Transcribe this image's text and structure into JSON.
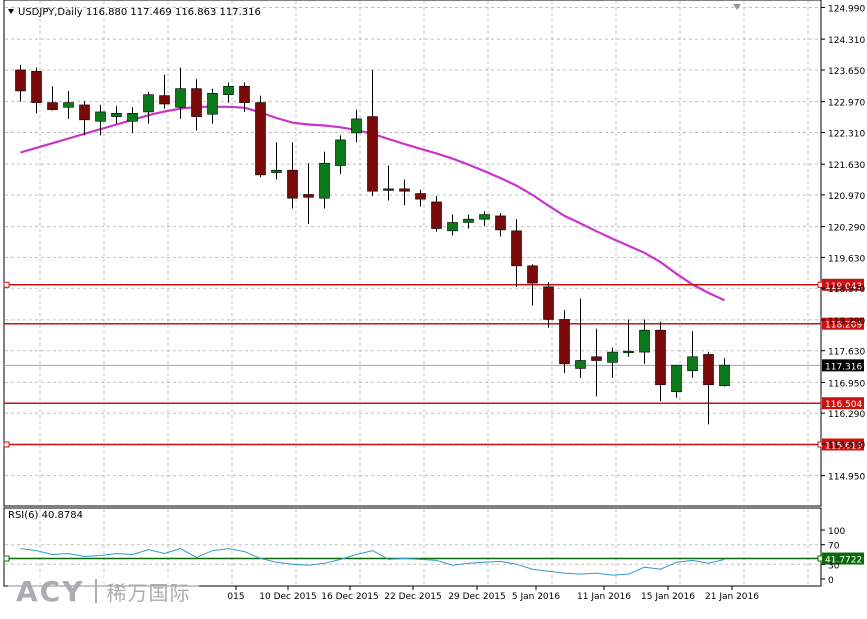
{
  "header": {
    "symbol_line": "USDJPY,Daily  116.880 117.469 116.863 117.316"
  },
  "rsi_header": "RSI(6) 40.8784",
  "watermark": {
    "brand": "ACY",
    "chinese": "稀万国际"
  },
  "colors": {
    "bull_fill": "#0a7a1a",
    "bear_fill": "#7a0a0a",
    "ma": "#cc33cc",
    "hline_red": "#cc1111",
    "rsi_line": "#3399cc",
    "rsi_level": "#0a6a0a",
    "grid": "#bfbfbf",
    "axis": "#000000"
  },
  "chart_data": [
    {
      "type": "candlestick",
      "title": "USDJPY,Daily",
      "ylim": [
        114.3,
        125.15
      ],
      "y_ticks": [
        "124.990",
        "124.310",
        "123.650",
        "122.970",
        "122.310",
        "121.630",
        "120.970",
        "120.290",
        "119.630",
        "118.970",
        "118.290",
        "117.630",
        "116.950",
        "116.290",
        "115.630",
        "114.950"
      ],
      "x_ticks": [
        "015",
        "10 Dec 2015",
        "16 Dec 2015",
        "22 Dec 2015",
        "29 Dec 2015",
        "5 Jan 2016",
        "11 Jan 2016",
        "15 Jan 2016",
        "21 Jan 2016"
      ],
      "candles": [
        {
          "o": 123.65,
          "h": 123.76,
          "l": 122.97,
          "c": 123.2
        },
        {
          "o": 123.62,
          "h": 123.7,
          "l": 122.72,
          "c": 122.95
        },
        {
          "o": 122.95,
          "h": 123.3,
          "l": 122.78,
          "c": 122.8
        },
        {
          "o": 122.85,
          "h": 123.2,
          "l": 122.6,
          "c": 122.95
        },
        {
          "o": 122.9,
          "h": 122.98,
          "l": 122.25,
          "c": 122.58
        },
        {
          "o": 122.55,
          "h": 122.9,
          "l": 122.25,
          "c": 122.75
        },
        {
          "o": 122.65,
          "h": 122.88,
          "l": 122.5,
          "c": 122.72
        },
        {
          "o": 122.55,
          "h": 122.85,
          "l": 122.3,
          "c": 122.72
        },
        {
          "o": 122.75,
          "h": 123.18,
          "l": 122.5,
          "c": 123.12
        },
        {
          "o": 123.1,
          "h": 123.55,
          "l": 122.82,
          "c": 122.92
        },
        {
          "o": 122.85,
          "h": 123.7,
          "l": 122.6,
          "c": 123.25
        },
        {
          "o": 123.25,
          "h": 123.45,
          "l": 122.35,
          "c": 122.65
        },
        {
          "o": 122.7,
          "h": 123.25,
          "l": 122.5,
          "c": 123.15
        },
        {
          "o": 123.12,
          "h": 123.38,
          "l": 122.95,
          "c": 123.3
        },
        {
          "o": 123.3,
          "h": 123.38,
          "l": 122.75,
          "c": 122.95
        },
        {
          "o": 122.95,
          "h": 123.1,
          "l": 121.35,
          "c": 121.4
        },
        {
          "o": 121.45,
          "h": 122.1,
          "l": 121.3,
          "c": 121.5
        },
        {
          "o": 121.5,
          "h": 122.1,
          "l": 120.68,
          "c": 120.9
        },
        {
          "o": 120.98,
          "h": 121.65,
          "l": 120.35,
          "c": 120.92
        },
        {
          "o": 120.9,
          "h": 121.9,
          "l": 120.68,
          "c": 121.65
        },
        {
          "o": 121.6,
          "h": 122.25,
          "l": 121.42,
          "c": 122.15
        },
        {
          "o": 122.3,
          "h": 122.8,
          "l": 122.1,
          "c": 122.6
        },
        {
          "o": 122.65,
          "h": 123.65,
          "l": 120.95,
          "c": 121.05
        },
        {
          "o": 121.1,
          "h": 121.6,
          "l": 120.85,
          "c": 121.07
        },
        {
          "o": 121.1,
          "h": 121.3,
          "l": 120.75,
          "c": 121.05
        },
        {
          "o": 121.0,
          "h": 121.08,
          "l": 120.72,
          "c": 120.88
        },
        {
          "o": 120.82,
          "h": 120.95,
          "l": 120.18,
          "c": 120.25
        },
        {
          "o": 120.2,
          "h": 120.55,
          "l": 120.1,
          "c": 120.38
        },
        {
          "o": 120.38,
          "h": 120.55,
          "l": 120.25,
          "c": 120.45
        },
        {
          "o": 120.45,
          "h": 120.62,
          "l": 120.3,
          "c": 120.55
        },
        {
          "o": 120.52,
          "h": 120.58,
          "l": 120.08,
          "c": 120.22
        },
        {
          "o": 120.2,
          "h": 120.45,
          "l": 119.0,
          "c": 119.45
        },
        {
          "o": 119.45,
          "h": 119.48,
          "l": 118.6,
          "c": 119.08
        },
        {
          "o": 119.0,
          "h": 119.1,
          "l": 118.12,
          "c": 118.3
        },
        {
          "o": 118.3,
          "h": 118.5,
          "l": 117.15,
          "c": 117.35
        },
        {
          "o": 117.25,
          "h": 118.75,
          "l": 117.05,
          "c": 117.42
        },
        {
          "o": 117.5,
          "h": 118.1,
          "l": 116.65,
          "c": 117.42
        },
        {
          "o": 117.38,
          "h": 117.7,
          "l": 117.05,
          "c": 117.6
        },
        {
          "o": 117.6,
          "h": 118.3,
          "l": 117.5,
          "c": 117.62
        },
        {
          "o": 117.6,
          "h": 118.3,
          "l": 117.35,
          "c": 118.07
        },
        {
          "o": 118.07,
          "h": 118.25,
          "l": 116.55,
          "c": 116.9
        },
        {
          "o": 116.75,
          "h": 117.32,
          "l": 116.62,
          "c": 117.32
        },
        {
          "o": 117.2,
          "h": 118.05,
          "l": 117.05,
          "c": 117.5
        },
        {
          "o": 117.55,
          "h": 117.6,
          "l": 116.05,
          "c": 116.9
        },
        {
          "o": 116.88,
          "h": 117.47,
          "l": 116.86,
          "c": 117.32
        }
      ],
      "ma_values": [
        121.88,
        121.98,
        122.08,
        122.18,
        122.28,
        122.38,
        122.48,
        122.58,
        122.68,
        122.76,
        122.82,
        122.86,
        122.86,
        122.86,
        122.84,
        122.74,
        122.62,
        122.52,
        122.48,
        122.46,
        122.42,
        122.36,
        122.28,
        122.17,
        122.06,
        121.96,
        121.86,
        121.75,
        121.62,
        121.48,
        121.33,
        121.17,
        120.97,
        120.74,
        120.52,
        120.36,
        120.19,
        120.03,
        119.88,
        119.73,
        119.53,
        119.28,
        119.05,
        118.87,
        118.71
      ],
      "horizontal_levels": [
        {
          "value": 119.043,
          "label": "119.043",
          "marker": true
        },
        {
          "value": 118.209,
          "label": "118.209",
          "marker": false
        },
        {
          "value": 116.504,
          "label": "116.504",
          "marker": false
        },
        {
          "value": 115.619,
          "label": "115.619",
          "marker": true
        }
      ],
      "last_price": {
        "value": 117.316,
        "label": "117.316"
      },
      "grid": true
    },
    {
      "type": "line",
      "title": "RSI(6) 40.8784",
      "ylim": [
        0,
        100
      ],
      "y_ticks": [
        "100",
        "70",
        "30",
        "0"
      ],
      "level": {
        "value": 41.7722,
        "label": "41.7722"
      },
      "series": [
        {
          "values": [
            62,
            58,
            50,
            52,
            46,
            48,
            52,
            50,
            60,
            52,
            62,
            44,
            58,
            62,
            56,
            42,
            34,
            30,
            28,
            32,
            40,
            50,
            58,
            40,
            42,
            40,
            38,
            28,
            32,
            34,
            36,
            30,
            20,
            16,
            12,
            10,
            12,
            8,
            10,
            24,
            20,
            34,
            38,
            32,
            40
          ]
        }
      ]
    }
  ]
}
